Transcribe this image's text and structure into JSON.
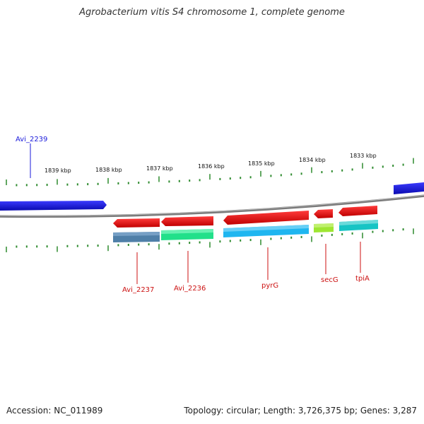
{
  "title": "Agrobacterium vitis S4 chromosome 1, complete genome",
  "footer": {
    "accession": "Accession: NC_011989",
    "summary": "Topology: circular; Length: 3,726,375 bp; Genes: 3,287"
  },
  "scale_labels": [
    "1839 kbp",
    "1838 kbp",
    "1837 kbp",
    "1836 kbp",
    "1835 kbp",
    "1834 kbp",
    "1833 kbp"
  ],
  "genes": [
    {
      "name": "Avi_2239",
      "strand": "plus",
      "color": "#1a1adb"
    },
    {
      "name": "Avi_2237",
      "strand": "minus",
      "color": "#d40000"
    },
    {
      "name": "Avi_2236",
      "strand": "minus",
      "color": "#d40000"
    },
    {
      "name": "pyrG",
      "strand": "minus",
      "color": "#d40000"
    },
    {
      "name": "secG",
      "strand": "minus",
      "color": "#d40000"
    },
    {
      "name": "tpiA",
      "strand": "minus",
      "color": "#d40000"
    }
  ],
  "colors": {
    "backbone": "#888888",
    "ticks": "#2e8b2e",
    "plus_strand": "#1a1adb",
    "minus_strand": "#ee1111",
    "label_plus": "#1a1adb",
    "label_minus": "#cc1111",
    "cog_avi2237": "#4f7fa8",
    "cog_avi2236": "#22e08a",
    "cog_pyrG": "#1fb6f0",
    "cog_secG": "#9ee632",
    "cog_tpiA": "#17c4c4"
  }
}
